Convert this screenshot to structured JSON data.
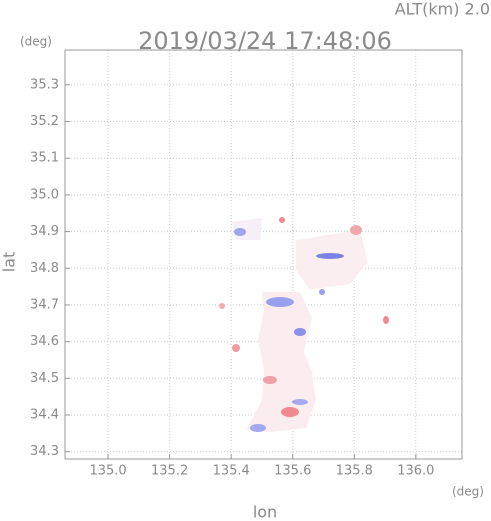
{
  "chart_data": {
    "type": "heatmap",
    "title": "2019/03/24 17:48:06",
    "subtitle": "ALT(km) 2.0",
    "x_label": "lon",
    "y_label": "lat",
    "x_unit": "(deg)",
    "y_unit": "(deg)",
    "xlim": [
      134.86,
      136.15
    ],
    "ylim": [
      34.28,
      35.395
    ],
    "xticks": [
      {
        "value": 135,
        "label": "135.0"
      },
      135.2,
      135.4,
      135.6,
      135.8,
      {
        "value": 136,
        "label": "136.0"
      }
    ],
    "yticks": [
      34.3,
      34.4,
      34.5,
      34.6,
      34.7,
      34.8,
      34.9,
      {
        "value": 35,
        "label": "35.0"
      },
      35.1,
      35.2,
      35.3
    ],
    "grid": true
  }
}
